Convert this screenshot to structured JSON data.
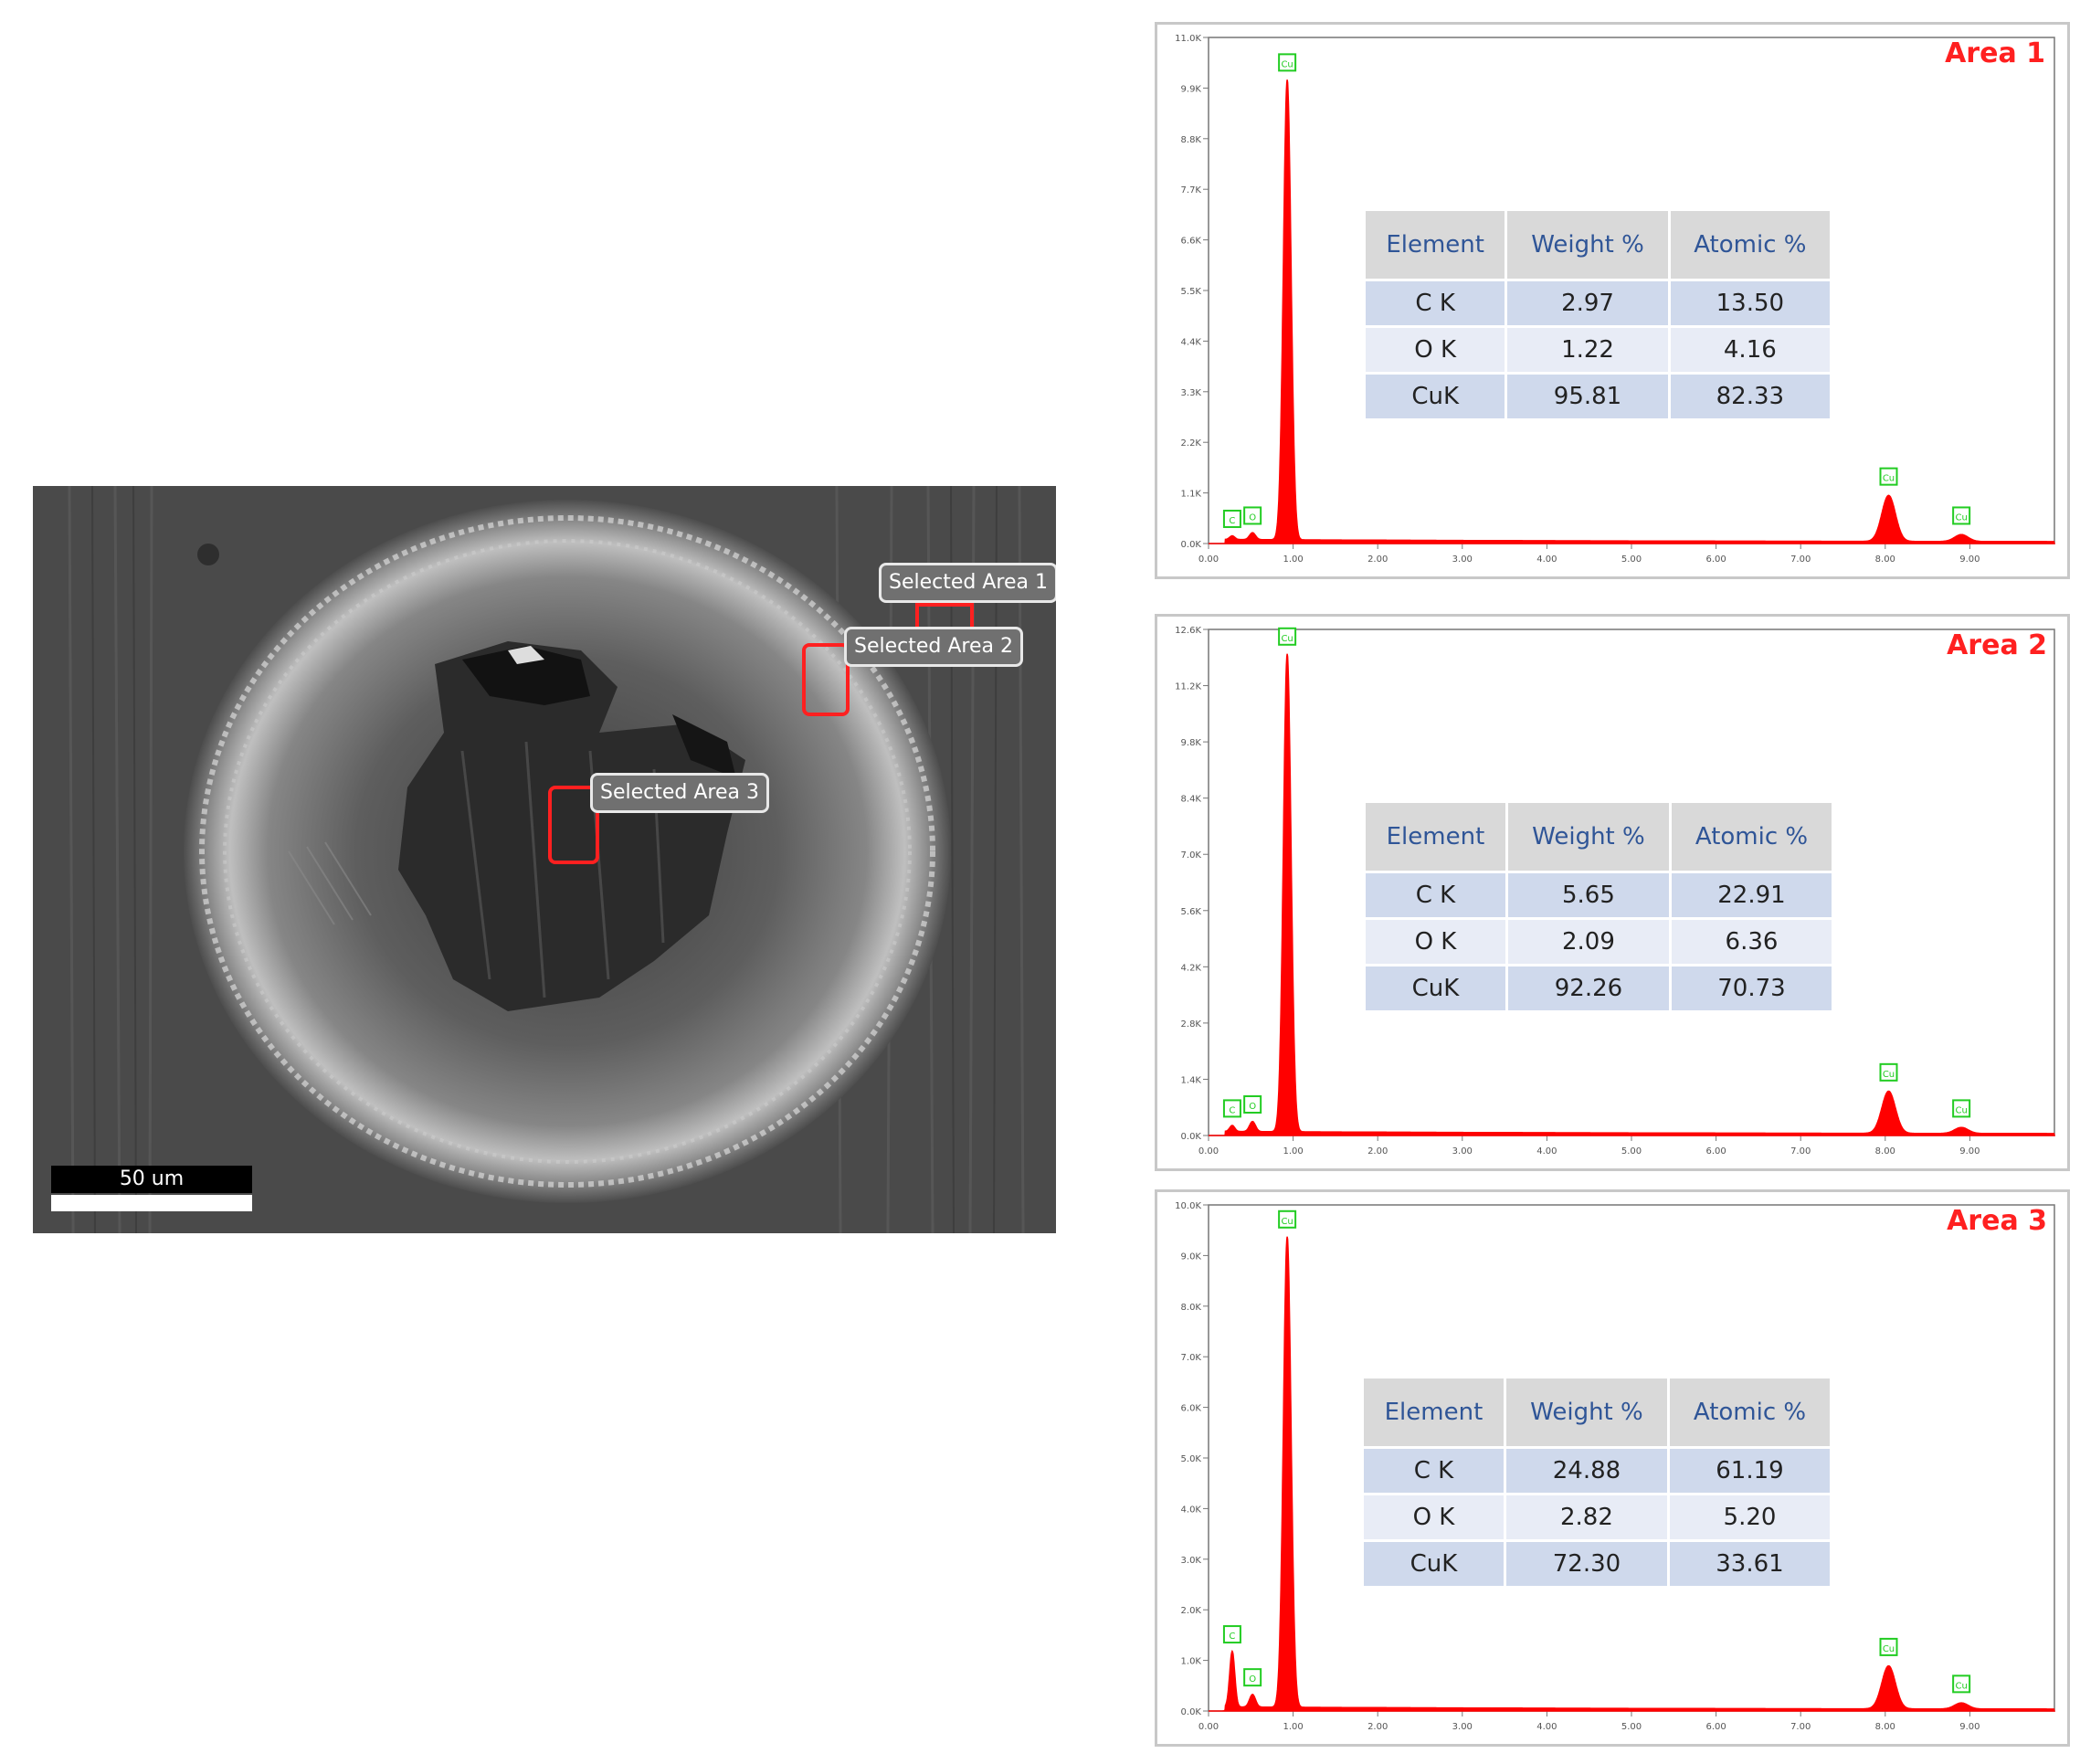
{
  "sem_image": {
    "labels": [
      "Selected Area 1",
      "Selected Area 2",
      "Selected Area 3"
    ],
    "scale_bar": "50 um"
  },
  "colors": {
    "spectrum": "#ff0000",
    "title": "#ff2020",
    "peak_marker": "#22cc22"
  },
  "table_headers": [
    "Element",
    "Weight %",
    "Atomic %"
  ],
  "chart_data": [
    {
      "type": "line",
      "title": "Area 1",
      "xlabel": "",
      "ylabel": "",
      "xlim": [
        0,
        10
      ],
      "ylim": [
        0,
        11000
      ],
      "x_ticks": [
        "0.00",
        "1.00",
        "2.00",
        "3.00",
        "4.00",
        "5.00",
        "6.00",
        "7.00",
        "8.00",
        "9.00"
      ],
      "y_ticks": [
        "0.0K",
        "1.1K",
        "2.2K",
        "3.3K",
        "4.4K",
        "5.5K",
        "6.6K",
        "7.7K",
        "8.8K",
        "9.9K",
        "11.0K"
      ],
      "peaks": [
        {
          "label": "C",
          "x": 0.28,
          "y": 80
        },
        {
          "label": "O",
          "x": 0.52,
          "y": 150
        },
        {
          "label": "Cu",
          "x": 0.93,
          "y": 10000
        },
        {
          "label": "Cu",
          "x": 8.04,
          "y": 1000
        },
        {
          "label": "Cu",
          "x": 8.9,
          "y": 150
        }
      ],
      "composition": [
        {
          "element": "C K",
          "weight": "2.97",
          "atomic": "13.50"
        },
        {
          "element": "O K",
          "weight": "1.22",
          "atomic": "4.16"
        },
        {
          "element": "CuK",
          "weight": "95.81",
          "atomic": "82.33"
        }
      ]
    },
    {
      "type": "line",
      "title": "Area 2",
      "xlabel": "",
      "ylabel": "",
      "xlim": [
        0,
        10
      ],
      "ylim": [
        0,
        12600
      ],
      "x_ticks": [
        "0.00",
        "1.00",
        "2.00",
        "3.00",
        "4.00",
        "5.00",
        "6.00",
        "7.00",
        "8.00",
        "9.00"
      ],
      "y_ticks": [
        "0.0K",
        "1.4K",
        "2.8K",
        "4.2K",
        "5.6K",
        "7.0K",
        "8.4K",
        "9.8K",
        "11.2K",
        "12.6K"
      ],
      "peaks": [
        {
          "label": "C",
          "x": 0.28,
          "y": 150
        },
        {
          "label": "O",
          "x": 0.52,
          "y": 250
        },
        {
          "label": "Cu",
          "x": 0.93,
          "y": 11900
        },
        {
          "label": "Cu",
          "x": 8.04,
          "y": 1050
        },
        {
          "label": "Cu",
          "x": 8.9,
          "y": 150
        }
      ],
      "composition": [
        {
          "element": "C K",
          "weight": "5.65",
          "atomic": "22.91"
        },
        {
          "element": "O K",
          "weight": "2.09",
          "atomic": "6.36"
        },
        {
          "element": "CuK",
          "weight": "92.26",
          "atomic": "70.73"
        }
      ]
    },
    {
      "type": "line",
      "title": "Area 3",
      "xlabel": "",
      "ylabel": "",
      "xlim": [
        0,
        10
      ],
      "ylim": [
        0,
        10000
      ],
      "x_ticks": [
        "0.00",
        "1.00",
        "2.00",
        "3.00",
        "4.00",
        "5.00",
        "6.00",
        "7.00",
        "8.00",
        "9.00"
      ],
      "y_ticks": [
        "0.0K",
        "1.0K",
        "2.0K",
        "3.0K",
        "4.0K",
        "5.0K",
        "6.0K",
        "7.0K",
        "8.0K",
        "9.0K",
        "10.0K"
      ],
      "peaks": [
        {
          "label": "C",
          "x": 0.28,
          "y": 1100
        },
        {
          "label": "O",
          "x": 0.52,
          "y": 250
        },
        {
          "label": "Cu",
          "x": 0.93,
          "y": 9300
        },
        {
          "label": "Cu",
          "x": 8.04,
          "y": 850
        },
        {
          "label": "Cu",
          "x": 8.9,
          "y": 120
        }
      ],
      "composition": [
        {
          "element": "C K",
          "weight": "24.88",
          "atomic": "61.19"
        },
        {
          "element": "O K",
          "weight": "2.82",
          "atomic": "5.20"
        },
        {
          "element": "CuK",
          "weight": "72.30",
          "atomic": "33.61"
        }
      ]
    }
  ]
}
